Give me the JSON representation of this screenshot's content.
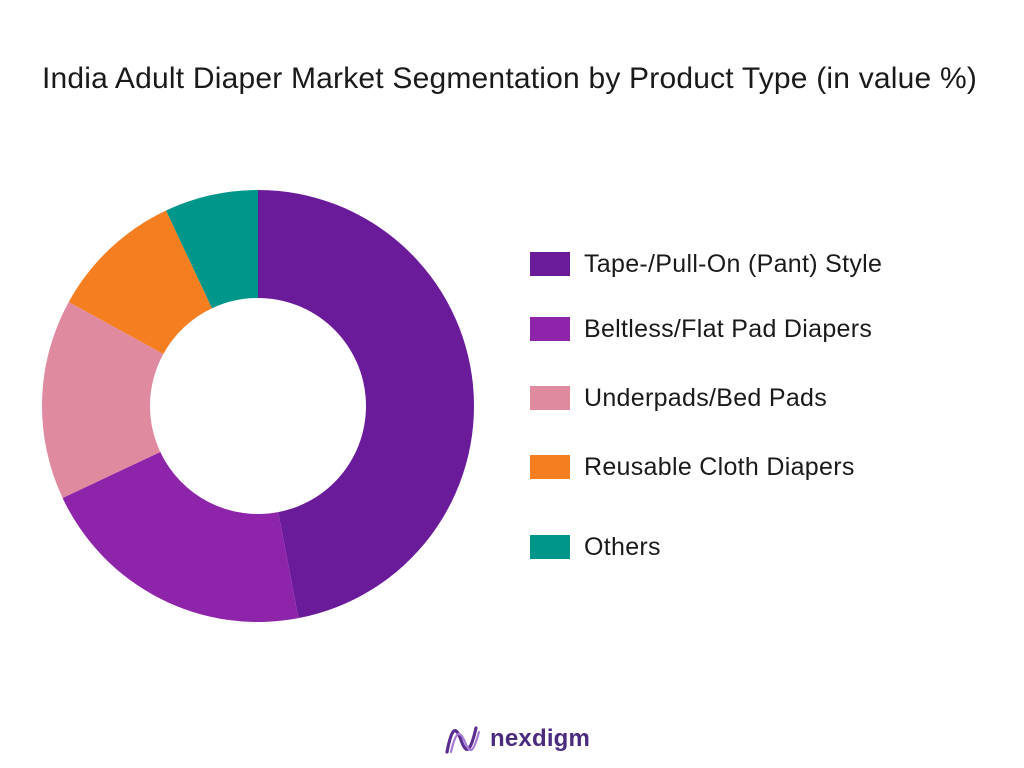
{
  "title": "India Adult Diaper Market Segmentation by Product Type (in value %)",
  "brand": {
    "name": "nexdigm"
  },
  "chart_data": {
    "type": "pie",
    "style": "donut",
    "title": "India Adult Diaper Market Segmentation by Product Type (in value %)",
    "legend_position": "right",
    "categories": [
      "Tape-/Pull-On (Pant) Style",
      "Beltless/Flat Pad Diapers",
      "Underpads/Bed Pads",
      "Reusable Cloth Diapers",
      "Others"
    ],
    "values": [
      47,
      21,
      15,
      10,
      7
    ],
    "colors": [
      "#6a1b9a",
      "#8e24aa",
      "#e08aa0",
      "#f57f20",
      "#00968a"
    ]
  }
}
